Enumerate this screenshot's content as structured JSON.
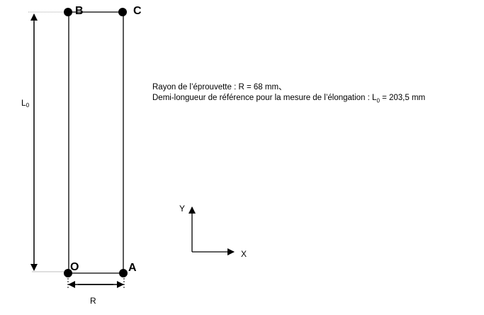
{
  "points": {
    "B": "B",
    "C": "C",
    "O": "O",
    "A": "A"
  },
  "dimensions": {
    "length_label": "L",
    "length_sub": "0",
    "radius_label": "R"
  },
  "axes": {
    "x": "X",
    "y": "Y"
  },
  "description": {
    "line1": "Rayon de l’éprouvette : R = 68 mm、",
    "line2_pre": "Demi-longueur de référence pour la mesure de l’élongation : L",
    "line2_sub": "0",
    "line2_post": " = 203,5 mm"
  }
}
